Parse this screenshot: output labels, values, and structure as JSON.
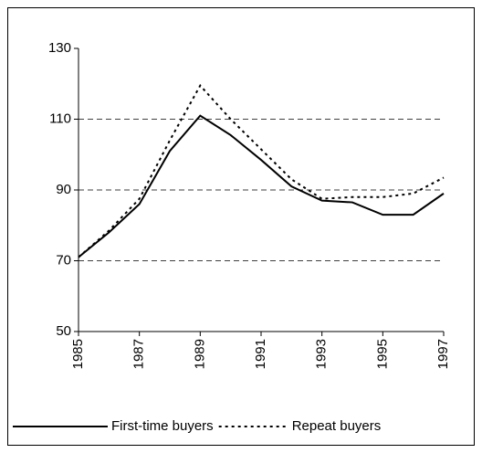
{
  "chart_data": {
    "type": "line",
    "x": [
      1985,
      1986,
      1987,
      1988,
      1989,
      1990,
      1991,
      1992,
      1993,
      1994,
      1995,
      1996,
      1997
    ],
    "series": [
      {
        "name": "First-time buyers",
        "color": "#000000",
        "line_style": "solid",
        "values": [
          71,
          78,
          86,
          101,
          111,
          105.5,
          98.5,
          91,
          87,
          86.5,
          83,
          83,
          89
        ]
      },
      {
        "name": "Repeat buyers",
        "color": "#000000",
        "line_style": "dotted",
        "values": [
          71,
          78.5,
          87.5,
          104,
          119.5,
          110,
          101.5,
          93,
          87.5,
          88,
          88,
          89,
          93.5
        ]
      }
    ],
    "xlim": [
      1985,
      1997
    ],
    "xticks": [
      1985,
      1987,
      1989,
      1991,
      1993,
      1995,
      1997
    ],
    "ylim": [
      50,
      130
    ],
    "yticks": [
      50,
      70,
      90,
      110,
      130
    ],
    "grid": true,
    "legend": "bottom"
  }
}
